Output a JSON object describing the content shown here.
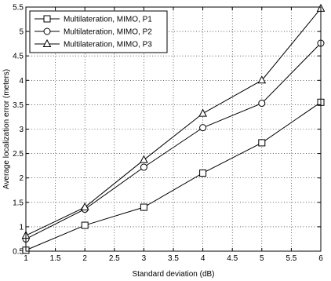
{
  "chart_data": {
    "type": "line",
    "xlabel": "Standard deviation (dB)",
    "ylabel": "Average localization error (meters)",
    "xlim": [
      1,
      6
    ],
    "ylim": [
      0.5,
      5.5
    ],
    "xticks": [
      "1",
      "1.5",
      "2",
      "2.5",
      "3",
      "3.5",
      "4",
      "4.5",
      "5",
      "5.5",
      "6"
    ],
    "yticks": [
      "0.5",
      "1",
      "1.5",
      "2",
      "2.5",
      "3",
      "3.5",
      "4",
      "4.5",
      "5",
      "5.5"
    ],
    "grid": true,
    "legend_position": "top-left",
    "x": [
      1,
      2,
      3,
      4,
      5,
      6
    ],
    "series": [
      {
        "name": "Multilateration, MIMO, P1",
        "marker": "square",
        "values": [
          0.52,
          1.03,
          1.4,
          2.1,
          2.72,
          3.55
        ]
      },
      {
        "name": "Multilateration, MIMO, P2",
        "marker": "circle",
        "values": [
          0.75,
          1.36,
          2.22,
          3.03,
          3.53,
          4.76
        ]
      },
      {
        "name": "Multilateration, MIMO, P3",
        "marker": "triangle",
        "values": [
          0.82,
          1.4,
          2.37,
          3.32,
          4.0,
          5.47
        ]
      }
    ]
  }
}
